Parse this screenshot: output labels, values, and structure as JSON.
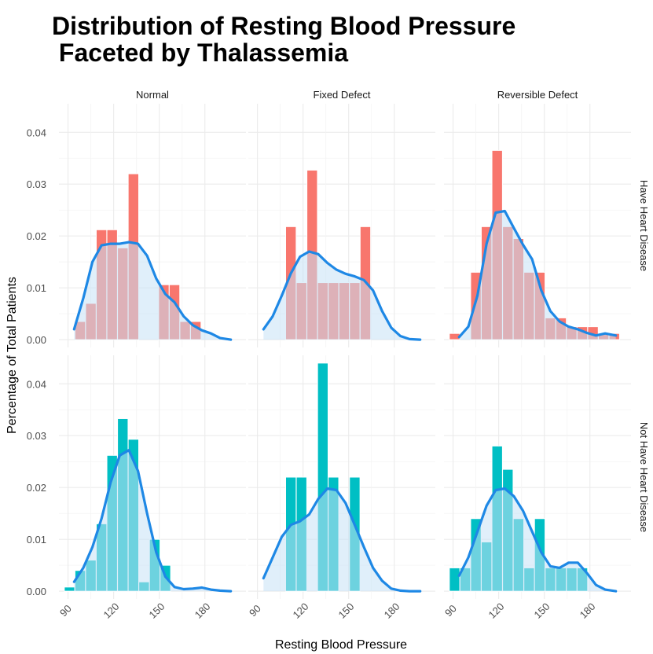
{
  "chart_data": {
    "type": "bar",
    "title": "Distribution of Resting Blood Pressure\n Faceted by Thalassemia",
    "xlabel": "Resting Blood Pressure",
    "ylabel": "Percentage of Total Patients",
    "xlim": [
      84,
      207
    ],
    "ylim": [
      -0.0015,
      0.0455
    ],
    "x_ticks": [
      90,
      120,
      150,
      180
    ],
    "y_ticks": [
      "0.00",
      "0.01",
      "0.02",
      "0.03",
      "0.04"
    ],
    "y_tick_values": [
      0,
      0.01,
      0.02,
      0.03,
      0.04
    ],
    "bin_width": 6.9,
    "columns": [
      "Normal",
      "Fixed Defect",
      "Reversible Defect"
    ],
    "rows": [
      "Have Heart Disease",
      "Not Have Heart Disease"
    ],
    "colors": {
      "Have Heart Disease": "#f8766d",
      "Not Have Heart Disease": "#00bfc4",
      "density_line": "#1e88e5",
      "density_fill": "#c6e2f5"
    },
    "panels": [
      {
        "column": "Normal",
        "row": "Have Heart Disease",
        "bars": [
          [
            98,
            0.0035
          ],
          [
            105,
            0.007
          ],
          [
            112,
            0.0212
          ],
          [
            119,
            0.0212
          ],
          [
            126,
            0.0177
          ],
          [
            133,
            0.032
          ],
          [
            153,
            0.0106
          ],
          [
            160,
            0.0106
          ],
          [
            167,
            0.0035
          ],
          [
            174,
            0.0035
          ]
        ],
        "density": [
          [
            94,
            0.002
          ],
          [
            100,
            0.008
          ],
          [
            106,
            0.015
          ],
          [
            112,
            0.0182
          ],
          [
            118,
            0.0185
          ],
          [
            124,
            0.0185
          ],
          [
            130,
            0.0188
          ],
          [
            136,
            0.0185
          ],
          [
            142,
            0.0162
          ],
          [
            148,
            0.0118
          ],
          [
            154,
            0.0088
          ],
          [
            160,
            0.0072
          ],
          [
            166,
            0.0045
          ],
          [
            172,
            0.0028
          ],
          [
            178,
            0.0018
          ],
          [
            184,
            0.0012
          ],
          [
            190,
            0.0003
          ],
          [
            197,
            0.0
          ]
        ]
      },
      {
        "column": "Fixed Defect",
        "row": "Have Heart Disease",
        "bars": [
          [
            112,
            0.0218
          ],
          [
            119,
            0.011
          ],
          [
            126,
            0.0327
          ],
          [
            133,
            0.011
          ],
          [
            140,
            0.011
          ],
          [
            147,
            0.011
          ],
          [
            154,
            0.011
          ],
          [
            161,
            0.0218
          ]
        ],
        "density": [
          [
            94,
            0.002
          ],
          [
            100,
            0.0045
          ],
          [
            106,
            0.0085
          ],
          [
            112,
            0.0128
          ],
          [
            118,
            0.016
          ],
          [
            124,
            0.017
          ],
          [
            130,
            0.0165
          ],
          [
            136,
            0.0148
          ],
          [
            142,
            0.0135
          ],
          [
            148,
            0.0127
          ],
          [
            154,
            0.0122
          ],
          [
            160,
            0.0115
          ],
          [
            166,
            0.0095
          ],
          [
            172,
            0.0055
          ],
          [
            178,
            0.0023
          ],
          [
            184,
            0.0007
          ],
          [
            190,
            0.0001
          ],
          [
            197,
            0.0
          ]
        ]
      },
      {
        "column": "Reversible Defect",
        "row": "Have Heart Disease",
        "bars": [
          [
            91,
            0.0012
          ],
          [
            105,
            0.013
          ],
          [
            112,
            0.0218
          ],
          [
            119,
            0.0365
          ],
          [
            126,
            0.0218
          ],
          [
            133,
            0.0195
          ],
          [
            140,
            0.013
          ],
          [
            147,
            0.013
          ],
          [
            154,
            0.0042
          ],
          [
            161,
            0.0042
          ],
          [
            168,
            0.0025
          ],
          [
            175,
            0.0025
          ],
          [
            182,
            0.0025
          ],
          [
            189,
            0.0012
          ],
          [
            196,
            0.0012
          ]
        ],
        "density": [
          [
            94,
            0.0005
          ],
          [
            100,
            0.0025
          ],
          [
            106,
            0.0085
          ],
          [
            112,
            0.0185
          ],
          [
            118,
            0.0245
          ],
          [
            124,
            0.0248
          ],
          [
            130,
            0.0215
          ],
          [
            136,
            0.0183
          ],
          [
            142,
            0.0155
          ],
          [
            148,
            0.0095
          ],
          [
            154,
            0.0055
          ],
          [
            160,
            0.0035
          ],
          [
            166,
            0.0025
          ],
          [
            172,
            0.002
          ],
          [
            178,
            0.0013
          ],
          [
            184,
            0.0008
          ],
          [
            190,
            0.0012
          ],
          [
            197,
            0.0008
          ]
        ]
      },
      {
        "column": "Normal",
        "row": "Not Have Heart Disease",
        "bars": [
          [
            91,
            0.0008
          ],
          [
            98,
            0.004
          ],
          [
            105,
            0.006
          ],
          [
            112,
            0.013
          ],
          [
            119,
            0.0262
          ],
          [
            126,
            0.0333
          ],
          [
            133,
            0.0293
          ],
          [
            140,
            0.0018
          ],
          [
            147,
            0.01
          ],
          [
            154,
            0.005
          ]
        ],
        "density": [
          [
            94,
            0.0018
          ],
          [
            100,
            0.0045
          ],
          [
            106,
            0.0085
          ],
          [
            112,
            0.014
          ],
          [
            118,
            0.021
          ],
          [
            124,
            0.0262
          ],
          [
            130,
            0.0272
          ],
          [
            136,
            0.0232
          ],
          [
            142,
            0.015
          ],
          [
            148,
            0.0075
          ],
          [
            154,
            0.0028
          ],
          [
            160,
            0.0008
          ],
          [
            166,
            0.0004
          ],
          [
            172,
            0.0005
          ],
          [
            178,
            0.0007
          ],
          [
            184,
            0.0003
          ],
          [
            190,
            0.0001
          ],
          [
            197,
            0.0
          ]
        ]
      },
      {
        "column": "Fixed Defect",
        "row": "Not Have Heart Disease",
        "bars": [
          [
            112,
            0.022
          ],
          [
            119,
            0.022
          ],
          [
            133,
            0.044
          ],
          [
            140,
            0.022
          ],
          [
            154,
            0.022
          ]
        ],
        "density": [
          [
            94,
            0.0025
          ],
          [
            100,
            0.0065
          ],
          [
            106,
            0.0105
          ],
          [
            112,
            0.0128
          ],
          [
            118,
            0.0135
          ],
          [
            124,
            0.0148
          ],
          [
            130,
            0.0178
          ],
          [
            136,
            0.0198
          ],
          [
            142,
            0.0195
          ],
          [
            148,
            0.017
          ],
          [
            154,
            0.0128
          ],
          [
            160,
            0.0085
          ],
          [
            166,
            0.0045
          ],
          [
            172,
            0.002
          ],
          [
            178,
            0.0005
          ],
          [
            184,
            0.0001
          ],
          [
            190,
            0.0
          ],
          [
            197,
            0.0
          ]
        ]
      },
      {
        "column": "Reversible Defect",
        "row": "Not Have Heart Disease",
        "bars": [
          [
            91,
            0.0045
          ],
          [
            98,
            0.0045
          ],
          [
            105,
            0.014
          ],
          [
            112,
            0.0095
          ],
          [
            119,
            0.028
          ],
          [
            126,
            0.0235
          ],
          [
            133,
            0.014
          ],
          [
            140,
            0.0045
          ],
          [
            147,
            0.014
          ],
          [
            154,
            0.0045
          ],
          [
            161,
            0.0045
          ],
          [
            168,
            0.0045
          ],
          [
            175,
            0.0045
          ]
        ],
        "density": [
          [
            94,
            0.003
          ],
          [
            100,
            0.0065
          ],
          [
            106,
            0.0115
          ],
          [
            112,
            0.0165
          ],
          [
            118,
            0.0195
          ],
          [
            124,
            0.0198
          ],
          [
            130,
            0.0183
          ],
          [
            136,
            0.0155
          ],
          [
            142,
            0.0115
          ],
          [
            148,
            0.0075
          ],
          [
            154,
            0.0048
          ],
          [
            160,
            0.0045
          ],
          [
            166,
            0.0055
          ],
          [
            172,
            0.0055
          ],
          [
            178,
            0.0035
          ],
          [
            184,
            0.0012
          ],
          [
            190,
            0.0003
          ],
          [
            197,
            0.0
          ]
        ]
      }
    ]
  }
}
